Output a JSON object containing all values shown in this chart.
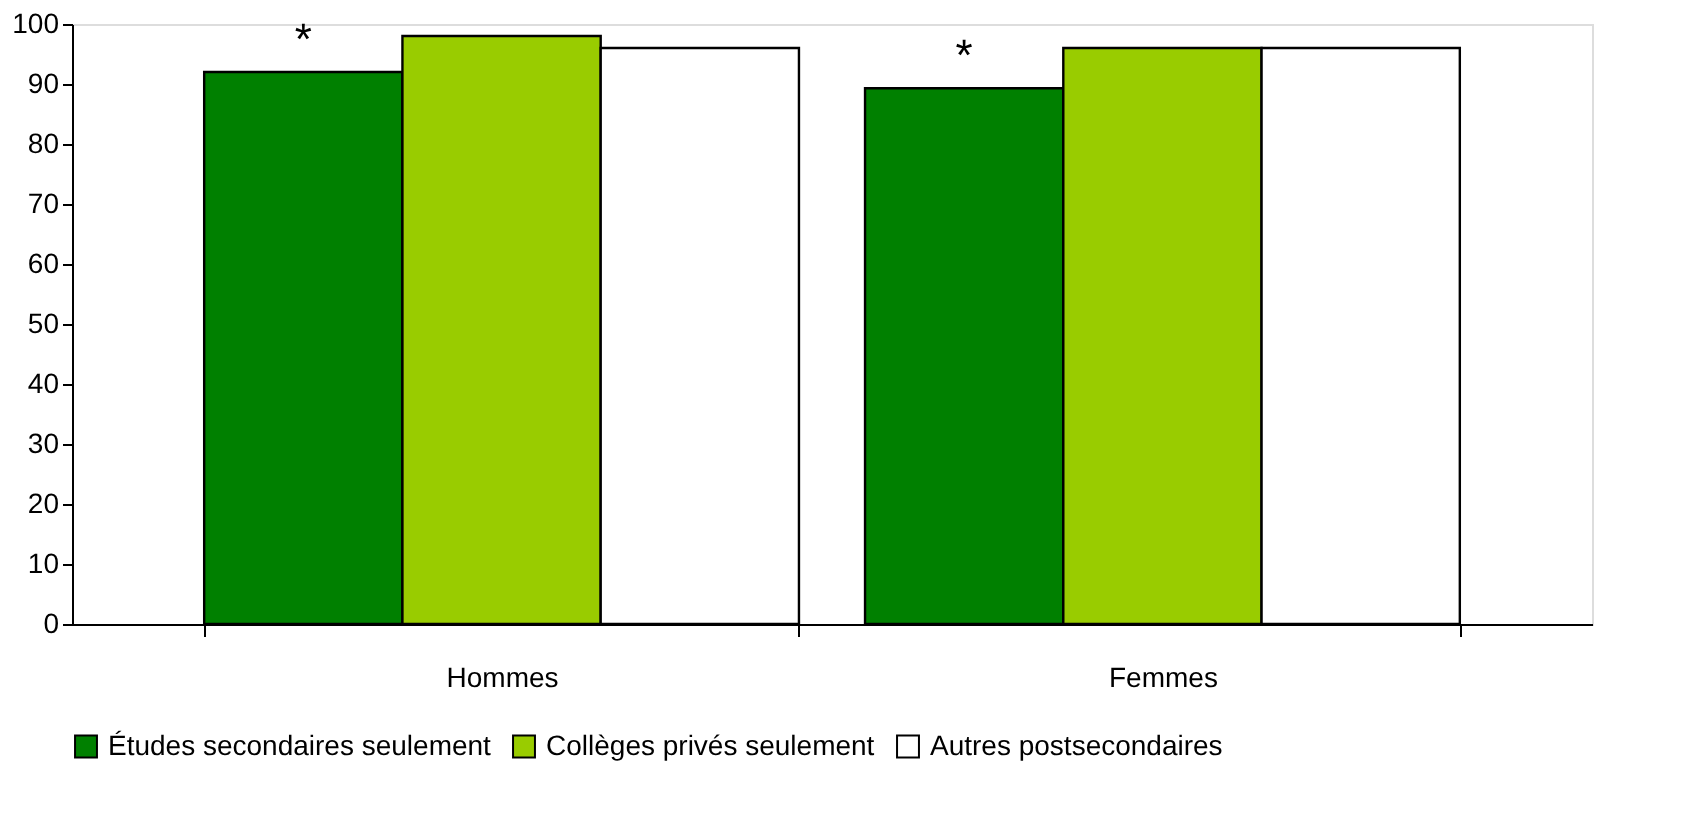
{
  "chart_data": {
    "type": "bar",
    "categories": [
      "Hommes",
      "Femmes"
    ],
    "series": [
      {
        "name": "Études secondaires seulement",
        "color": "#008000",
        "values": [
          92,
          89.3
        ]
      },
      {
        "name": "Collèges privés seulement",
        "color": "#99cc00",
        "values": [
          98,
          96
        ]
      },
      {
        "name": "Autres postsecondaires",
        "color": "#ffffff",
        "values": [
          96,
          96
        ]
      }
    ],
    "ylim": [
      0,
      100
    ],
    "yticks": [
      0,
      10,
      20,
      30,
      40,
      50,
      60,
      70,
      80,
      90,
      100
    ],
    "grid": false,
    "legend": "bottom",
    "annotations": [
      "*",
      "*"
    ]
  }
}
